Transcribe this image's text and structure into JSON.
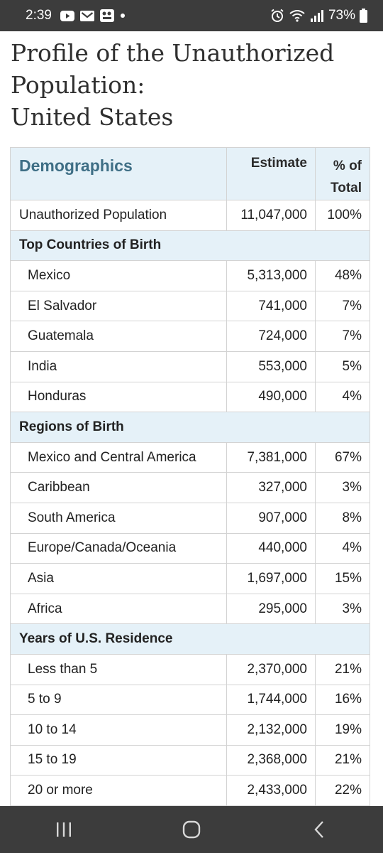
{
  "status_bar": {
    "time": "2:39",
    "battery": "73%",
    "left_icons": [
      "youtube-icon",
      "gmail-icon",
      "app-notification-icon",
      "dot-icon"
    ],
    "right_icons": [
      "alarm-icon",
      "wifi-icon",
      "signal-icon",
      "battery-icon"
    ]
  },
  "title": {
    "line1": "Profile of the Unauthorized",
    "line2": "Population:",
    "line3": "United States"
  },
  "table": {
    "headers": {
      "demographics": "Demographics",
      "estimate": "Estimate",
      "pct_line1": "% of",
      "pct_line2": "Total"
    },
    "rows": [
      {
        "type": "data",
        "indent": false,
        "label": "Unauthorized Population",
        "estimate": "11,047,000",
        "pct": "100%"
      },
      {
        "type": "section",
        "label": "Top Countries of Birth"
      },
      {
        "type": "data",
        "indent": true,
        "label": "Mexico",
        "estimate": "5,313,000",
        "pct": "48%"
      },
      {
        "type": "data",
        "indent": true,
        "label": "El Salvador",
        "estimate": "741,000",
        "pct": "7%"
      },
      {
        "type": "data",
        "indent": true,
        "label": "Guatemala",
        "estimate": "724,000",
        "pct": "7%"
      },
      {
        "type": "data",
        "indent": true,
        "label": "India",
        "estimate": "553,000",
        "pct": "5%"
      },
      {
        "type": "data",
        "indent": true,
        "label": "Honduras",
        "estimate": "490,000",
        "pct": "4%"
      },
      {
        "type": "section",
        "label": "Regions of Birth"
      },
      {
        "type": "data",
        "indent": true,
        "label": "Mexico and Central America",
        "estimate": "7,381,000",
        "pct": "67%"
      },
      {
        "type": "data",
        "indent": true,
        "label": "Caribbean",
        "estimate": "327,000",
        "pct": "3%"
      },
      {
        "type": "data",
        "indent": true,
        "label": "South America",
        "estimate": "907,000",
        "pct": "8%"
      },
      {
        "type": "data",
        "indent": true,
        "label": "Europe/Canada/Oceania",
        "estimate": "440,000",
        "pct": "4%"
      },
      {
        "type": "data",
        "indent": true,
        "label": "Asia",
        "estimate": "1,697,000",
        "pct": "15%"
      },
      {
        "type": "data",
        "indent": true,
        "label": "Africa",
        "estimate": "295,000",
        "pct": "3%"
      },
      {
        "type": "section",
        "label": "Years of U.S. Residence"
      },
      {
        "type": "data",
        "indent": true,
        "label": "Less than 5",
        "estimate": "2,370,000",
        "pct": "21%"
      },
      {
        "type": "data",
        "indent": true,
        "label": "5 to 9",
        "estimate": "1,744,000",
        "pct": "16%"
      },
      {
        "type": "data",
        "indent": true,
        "label": "10 to 14",
        "estimate": "2,132,000",
        "pct": "19%"
      },
      {
        "type": "data",
        "indent": true,
        "label": "15 to 19",
        "estimate": "2,368,000",
        "pct": "21%"
      },
      {
        "type": "data",
        "indent": true,
        "label": "20 or more",
        "estimate": "2,433,000",
        "pct": "22%"
      }
    ]
  },
  "nav_bar": {
    "buttons": [
      "recent-apps-icon",
      "home-icon",
      "back-icon"
    ]
  },
  "colors": {
    "header_bg": "#e5f1f8",
    "header_accent": "#3f6f86",
    "system_bar": "#3c3c3c"
  }
}
